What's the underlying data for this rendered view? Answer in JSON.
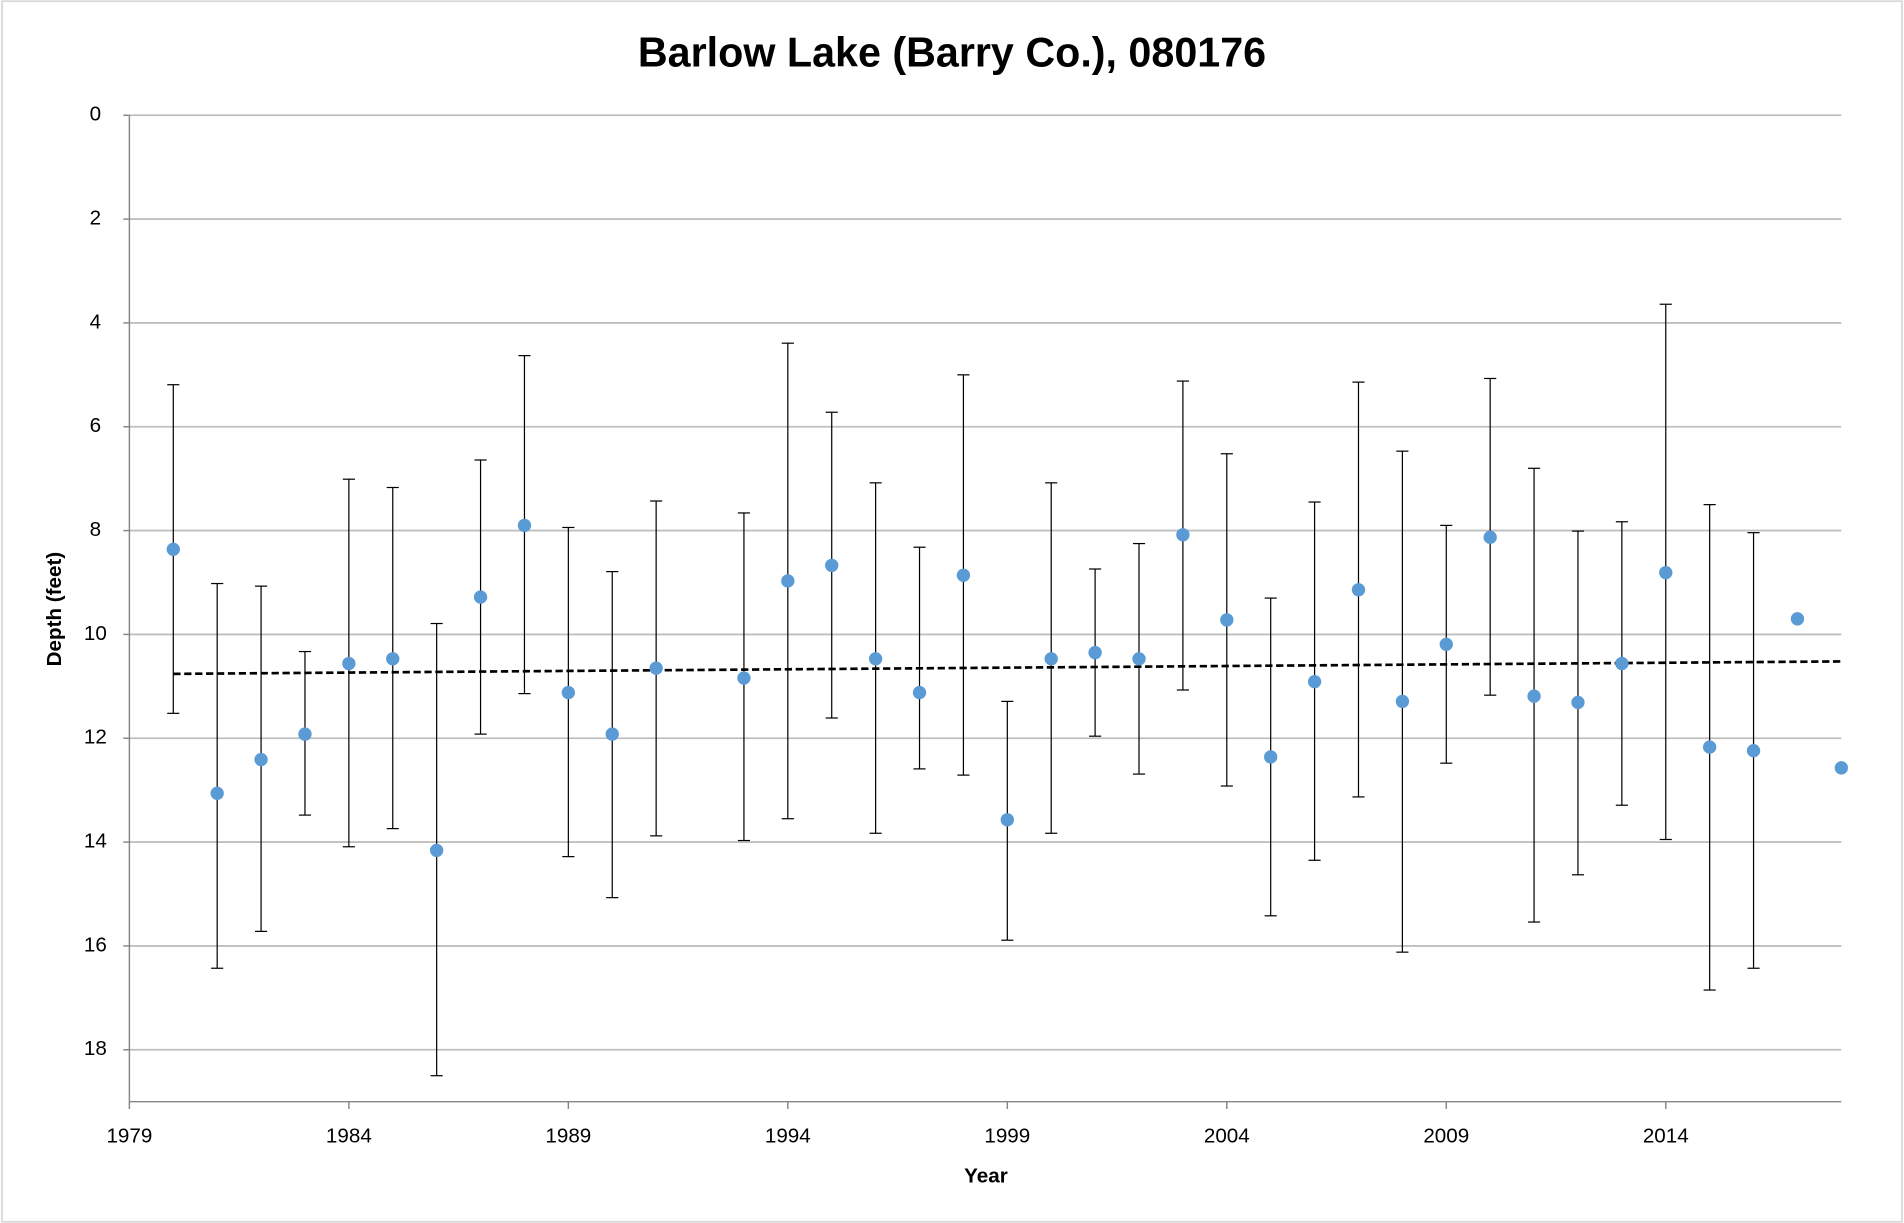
{
  "chart_data": {
    "type": "scatter",
    "title": "Barlow Lake (Barry Co.), 080176",
    "x_label": "Year",
    "y_label": "Depth (feet)",
    "x": [
      1980,
      1981,
      1982,
      1983,
      1984,
      1985,
      1986,
      1987,
      1988,
      1989,
      1990,
      1991,
      1993,
      1994,
      1995,
      1996,
      1997,
      1998,
      1999,
      2000,
      2001,
      2002,
      2003,
      2004,
      2005,
      2006,
      2007,
      2008,
      2009,
      2010,
      2011,
      2012,
      2013,
      2014,
      2015,
      2016,
      2017,
      2018
    ],
    "series": [
      {
        "color": "#5b9bd5",
        "values": [
          8.36,
          13.06,
          12.41,
          11.92,
          10.56,
          10.47,
          14.16,
          9.28,
          7.9,
          11.12,
          11.92,
          10.65,
          10.84,
          8.97,
          8.67,
          10.47,
          11.12,
          8.86,
          13.57,
          10.47,
          10.35,
          10.47,
          8.08,
          9.72,
          12.36,
          10.91,
          9.14,
          11.29,
          10.19,
          8.13,
          11.19,
          11.31,
          10.56,
          8.81,
          12.17,
          12.24,
          9.7,
          12.57
        ],
        "error_low": [
          5.19,
          9.02,
          9.07,
          10.33,
          7.01,
          7.17,
          9.79,
          6.64,
          4.63,
          7.94,
          8.79,
          7.43,
          7.66,
          4.39,
          5.72,
          7.08,
          8.32,
          5.0,
          11.29,
          7.08,
          8.74,
          8.25,
          5.12,
          6.52,
          9.3,
          7.45,
          5.14,
          6.47,
          7.9,
          5.07,
          6.8,
          8.01,
          7.83,
          3.64,
          7.5,
          8.04,
          null,
          null
        ],
        "error_high": [
          11.52,
          16.43,
          15.72,
          13.48,
          14.09,
          13.74,
          18.5,
          11.92,
          11.14,
          14.28,
          15.07,
          13.88,
          13.97,
          13.55,
          11.61,
          13.83,
          12.59,
          12.71,
          15.89,
          13.83,
          11.96,
          12.69,
          11.07,
          12.92,
          15.42,
          14.35,
          13.13,
          16.12,
          12.48,
          11.17,
          15.54,
          14.63,
          13.29,
          13.95,
          16.85,
          16.43,
          null,
          null
        ]
      }
    ],
    "trendline": {
      "x": [
        1980,
        2018
      ],
      "values": [
        10.76,
        10.52
      ],
      "color": "#000000",
      "dashed": true
    },
    "xlim": [
      1979,
      2018
    ],
    "ylim": [
      0,
      19
    ],
    "y_inverted": true,
    "xticks": [
      1979,
      1984,
      1989,
      1994,
      1999,
      2004,
      2009,
      2014
    ],
    "yticks": [
      0,
      2,
      4,
      6,
      8,
      10,
      12,
      14,
      16,
      18
    ],
    "grid": true
  }
}
